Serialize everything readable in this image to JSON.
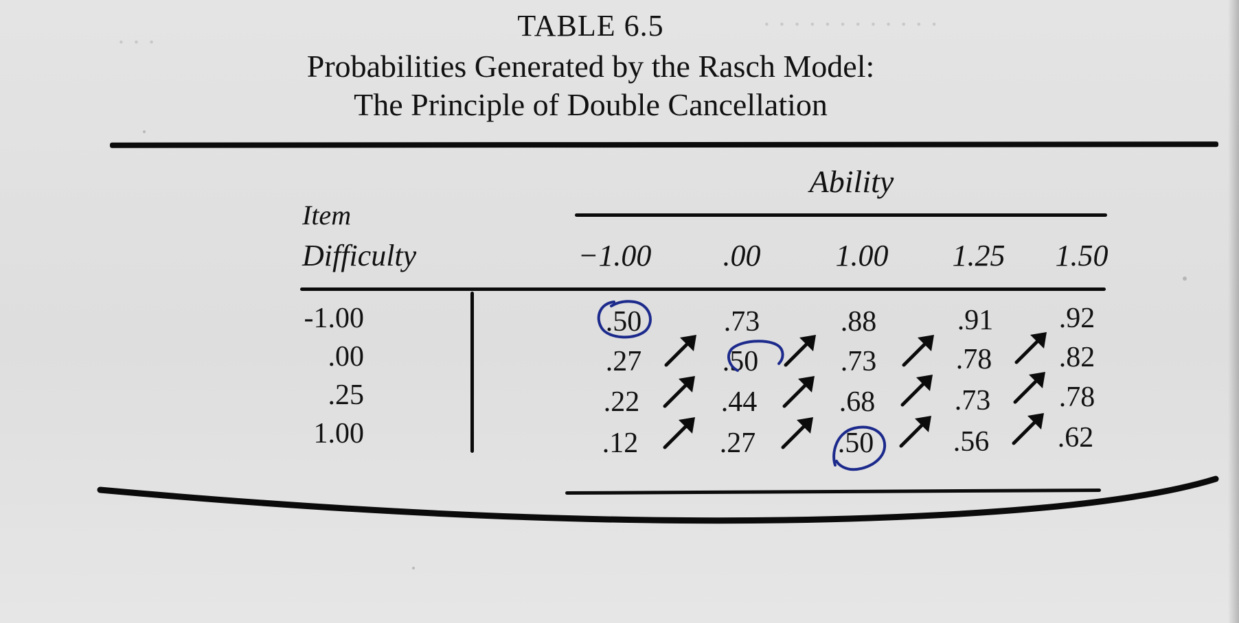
{
  "table": {
    "label": "TABLE 6.5",
    "title_line1": "Probabilities Generated by the Rasch Model:",
    "title_line2": "The Principle of Double Cancellation",
    "ability_header": "Ability",
    "row_header_line1": "Item",
    "row_header_line2": "Difficulty",
    "columns": [
      "−1.00",
      ".00",
      "1.00",
      "1.25",
      "1.50"
    ],
    "rows": [
      {
        "label": "-1.00",
        "values": [
          ".50",
          ".73",
          ".88",
          ".91",
          ".92"
        ]
      },
      {
        "label": ".00",
        "values": [
          ".27",
          ".50",
          ".73",
          ".78",
          ".82"
        ]
      },
      {
        "label": ".25",
        "values": [
          ".22",
          ".44",
          ".68",
          ".73",
          ".78"
        ]
      },
      {
        "label": "1.00",
        "values": [
          ".12",
          ".27",
          ".50",
          ".56",
          ".62"
        ]
      }
    ]
  },
  "annotations": {
    "arrow_glyph": "up-right-arrow",
    "circled_cells": [
      {
        "row": 0,
        "col": 0
      },
      {
        "row": 1,
        "col": 1
      },
      {
        "row": 3,
        "col": 2
      }
    ],
    "ink_color": "#1c2a8c",
    "text_color": "#111111",
    "paper_color": "#e0e0e0"
  }
}
